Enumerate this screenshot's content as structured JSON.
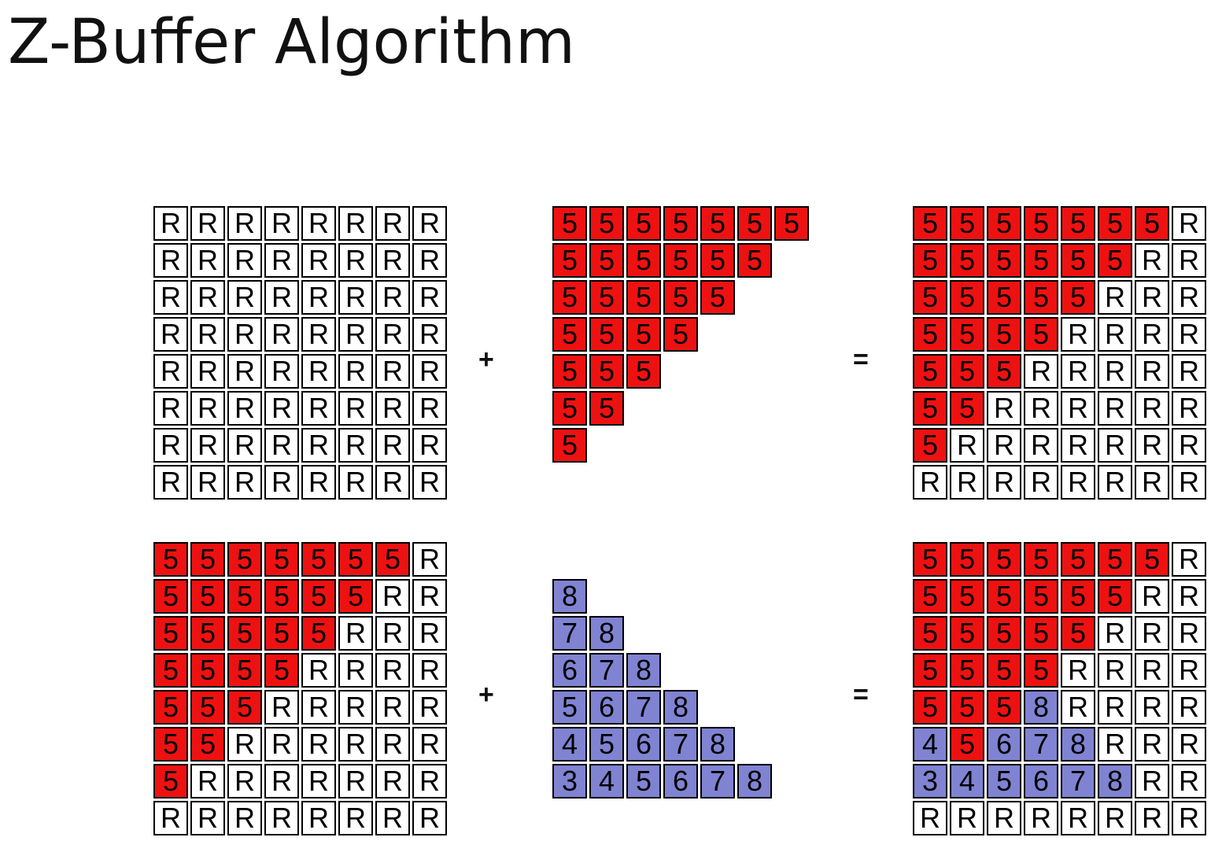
{
  "title": "Z-Buffer Algorithm",
  "colors": {
    "background_cell": "#ffffff",
    "red_polygon": "#ee1111",
    "blue_polygon": "#7f83d2",
    "border": "#000000"
  },
  "operators": {
    "plus": "+",
    "equals": "="
  },
  "grids": [
    {
      "name": "row1-initial-zbuffer",
      "rows": [
        [
          "R",
          "R",
          "R",
          "R",
          "R",
          "R",
          "R",
          "R"
        ],
        [
          "R",
          "R",
          "R",
          "R",
          "R",
          "R",
          "R",
          "R"
        ],
        [
          "R",
          "R",
          "R",
          "R",
          "R",
          "R",
          "R",
          "R"
        ],
        [
          "R",
          "R",
          "R",
          "R",
          "R",
          "R",
          "R",
          "R"
        ],
        [
          "R",
          "R",
          "R",
          "R",
          "R",
          "R",
          "R",
          "R"
        ],
        [
          "R",
          "R",
          "R",
          "R",
          "R",
          "R",
          "R",
          "R"
        ],
        [
          "R",
          "R",
          "R",
          "R",
          "R",
          "R",
          "R",
          "R"
        ],
        [
          "R",
          "R",
          "R",
          "R",
          "R",
          "R",
          "R",
          "R"
        ]
      ]
    },
    {
      "name": "row1-red-polygon",
      "rows": [
        [
          "5r",
          "5r",
          "5r",
          "5r",
          "5r",
          "5r",
          "5r",
          ""
        ],
        [
          "5r",
          "5r",
          "5r",
          "5r",
          "5r",
          "5r",
          "",
          ""
        ],
        [
          "5r",
          "5r",
          "5r",
          "5r",
          "5r",
          "",
          "",
          ""
        ],
        [
          "5r",
          "5r",
          "5r",
          "5r",
          "",
          "",
          "",
          ""
        ],
        [
          "5r",
          "5r",
          "5r",
          "",
          "",
          "",
          "",
          ""
        ],
        [
          "5r",
          "5r",
          "",
          "",
          "",
          "",
          "",
          ""
        ],
        [
          "5r",
          "",
          "",
          "",
          "",
          "",
          "",
          ""
        ]
      ]
    },
    {
      "name": "row1-result-zbuffer",
      "rows": [
        [
          "5r",
          "5r",
          "5r",
          "5r",
          "5r",
          "5r",
          "5r",
          "R"
        ],
        [
          "5r",
          "5r",
          "5r",
          "5r",
          "5r",
          "5r",
          "R",
          "R"
        ],
        [
          "5r",
          "5r",
          "5r",
          "5r",
          "5r",
          "R",
          "R",
          "R"
        ],
        [
          "5r",
          "5r",
          "5r",
          "5r",
          "R",
          "R",
          "R",
          "R"
        ],
        [
          "5r",
          "5r",
          "5r",
          "R",
          "R",
          "R",
          "R",
          "R"
        ],
        [
          "5r",
          "5r",
          "R",
          "R",
          "R",
          "R",
          "R",
          "R"
        ],
        [
          "5r",
          "R",
          "R",
          "R",
          "R",
          "R",
          "R",
          "R"
        ],
        [
          "R",
          "R",
          "R",
          "R",
          "R",
          "R",
          "R",
          "R"
        ]
      ]
    },
    {
      "name": "row2-current-zbuffer",
      "rows": [
        [
          "5r",
          "5r",
          "5r",
          "5r",
          "5r",
          "5r",
          "5r",
          "R"
        ],
        [
          "5r",
          "5r",
          "5r",
          "5r",
          "5r",
          "5r",
          "R",
          "R"
        ],
        [
          "5r",
          "5r",
          "5r",
          "5r",
          "5r",
          "R",
          "R",
          "R"
        ],
        [
          "5r",
          "5r",
          "5r",
          "5r",
          "R",
          "R",
          "R",
          "R"
        ],
        [
          "5r",
          "5r",
          "5r",
          "R",
          "R",
          "R",
          "R",
          "R"
        ],
        [
          "5r",
          "5r",
          "R",
          "R",
          "R",
          "R",
          "R",
          "R"
        ],
        [
          "5r",
          "R",
          "R",
          "R",
          "R",
          "R",
          "R",
          "R"
        ],
        [
          "R",
          "R",
          "R",
          "R",
          "R",
          "R",
          "R",
          "R"
        ]
      ]
    },
    {
      "name": "row2-blue-polygon",
      "rows": [
        [
          "",
          "",
          "",
          "",
          "",
          "",
          "",
          ""
        ],
        [
          "8b",
          "",
          "",
          "",
          "",
          "",
          "",
          ""
        ],
        [
          "7b",
          "8b",
          "",
          "",
          "",
          "",
          "",
          ""
        ],
        [
          "6b",
          "7b",
          "8b",
          "",
          "",
          "",
          "",
          ""
        ],
        [
          "5b",
          "6b",
          "7b",
          "8b",
          "",
          "",
          "",
          ""
        ],
        [
          "4b",
          "5b",
          "6b",
          "7b",
          "8b",
          "",
          "",
          ""
        ],
        [
          "3b",
          "4b",
          "5b",
          "6b",
          "7b",
          "8b",
          "",
          ""
        ]
      ]
    },
    {
      "name": "row2-result-zbuffer",
      "rows": [
        [
          "5r",
          "5r",
          "5r",
          "5r",
          "5r",
          "5r",
          "5r",
          "R"
        ],
        [
          "5r",
          "5r",
          "5r",
          "5r",
          "5r",
          "5r",
          "R",
          "R"
        ],
        [
          "5r",
          "5r",
          "5r",
          "5r",
          "5r",
          "R",
          "R",
          "R"
        ],
        [
          "5r",
          "5r",
          "5r",
          "5r",
          "R",
          "R",
          "R",
          "R"
        ],
        [
          "5r",
          "5r",
          "5r",
          "8b",
          "R",
          "R",
          "R",
          "R"
        ],
        [
          "4b",
          "5r",
          "6b",
          "7b",
          "8b",
          "R",
          "R",
          "R"
        ],
        [
          "3b",
          "4b",
          "5b",
          "6b",
          "7b",
          "8b",
          "R",
          "R"
        ],
        [
          "R",
          "R",
          "R",
          "R",
          "R",
          "R",
          "R",
          "R"
        ]
      ]
    }
  ]
}
